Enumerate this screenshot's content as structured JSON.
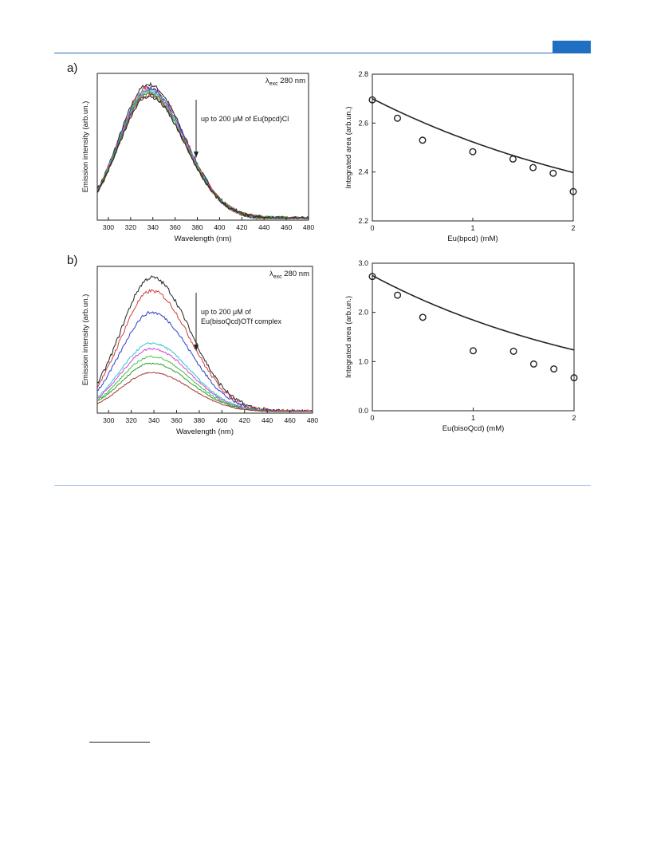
{
  "panels": {
    "a_label": "a)",
    "b_label": "b)"
  },
  "colors": {
    "header_rule": "#2a6db5",
    "header_tab": "#1f6fc2",
    "separator": "#9ec1e6",
    "spectra": [
      "#222222",
      "#d23b3b",
      "#2b3fc8",
      "#33c6d6",
      "#d63fd6",
      "#40c040",
      "#2f9a2f",
      "#a83232"
    ]
  },
  "chart_data": [
    {
      "id": "a-spectra",
      "type": "line",
      "xlabel": "Wavelength (nm)",
      "ylabel": "Emission intensity (arb.un.)",
      "xlim": [
        290,
        480
      ],
      "xticks": [
        300,
        320,
        340,
        360,
        380,
        400,
        420,
        440,
        460,
        480
      ],
      "yticks": [],
      "excitation_label": {
        "symbol": "λ",
        "sub": "exc",
        "value": " 280 nm"
      },
      "annotation": [
        "up to 200 μM of Eu(bpcd)Cl"
      ],
      "arrow": "down",
      "peak_wavelength": 336,
      "fwhm_nm": 62,
      "start_fraction": 0.13,
      "peak_levels": [
        1.0,
        0.98,
        0.97,
        0.96,
        0.95,
        0.94,
        0.93,
        0.92,
        0.91
      ]
    },
    {
      "id": "a-area",
      "type": "scatter",
      "xlabel": "Eu(bpcd) (mM)",
      "ylabel": "Integrated area (arb.un.)",
      "xlim": [
        0,
        2
      ],
      "ylim": [
        2.2,
        2.8
      ],
      "xticks": [
        0,
        1,
        2
      ],
      "yticks": [
        2.2,
        2.4,
        2.6,
        2.8
      ],
      "ytick_labels": [
        "2.2",
        "2.4",
        "2.6",
        "2.8"
      ],
      "points": [
        [
          0,
          2.695
        ],
        [
          0.25,
          2.62
        ],
        [
          0.5,
          2.53
        ],
        [
          1.0,
          2.483
        ],
        [
          1.4,
          2.453
        ],
        [
          1.6,
          2.418
        ],
        [
          1.8,
          2.395
        ],
        [
          2.0,
          2.32
        ]
      ],
      "fit": {
        "type": "exponential",
        "y0": 2.7,
        "A": 0.6,
        "k": 0.35
      }
    },
    {
      "id": "b-spectra",
      "type": "line",
      "xlabel": "Wavelength (nm)",
      "ylabel": "Emission intensity (arb.un.)",
      "xlim": [
        290,
        480
      ],
      "xticks": [
        300,
        320,
        340,
        360,
        380,
        400,
        420,
        440,
        460,
        480
      ],
      "yticks": [],
      "excitation_label": {
        "symbol": "λ",
        "sub": "exc",
        "value": " 280 nm"
      },
      "annotation": [
        "up to 200 μM of",
        "Eu(bisoQcd)OTf complex"
      ],
      "arrow": "down",
      "peak_wavelength": 338,
      "fwhm_nm": 64,
      "start_fraction": 0.16,
      "peak_levels": [
        1.0,
        0.9,
        0.74,
        0.51,
        0.47,
        0.41,
        0.36,
        0.29
      ]
    },
    {
      "id": "b-area",
      "type": "scatter",
      "xlabel": "Eu(bisoQcd) (mM)",
      "ylabel": "Integrated area (arb.un.)",
      "xlim": [
        0,
        2
      ],
      "ylim": [
        0,
        3
      ],
      "xticks": [
        0,
        1,
        2
      ],
      "yticks": [
        0,
        1,
        2,
        3
      ],
      "ytick_labels": [
        "0.0",
        "1.0",
        "2.0",
        "3.0"
      ],
      "points": [
        [
          0,
          2.73
        ],
        [
          0.25,
          2.35
        ],
        [
          0.5,
          1.9
        ],
        [
          1.0,
          1.22
        ],
        [
          1.4,
          1.21
        ],
        [
          1.6,
          0.95
        ],
        [
          1.8,
          0.85
        ],
        [
          2.0,
          0.67
        ]
      ],
      "fit": {
        "type": "exponential",
        "y0": 2.75,
        "A": 3.2,
        "k": 0.4
      }
    }
  ]
}
